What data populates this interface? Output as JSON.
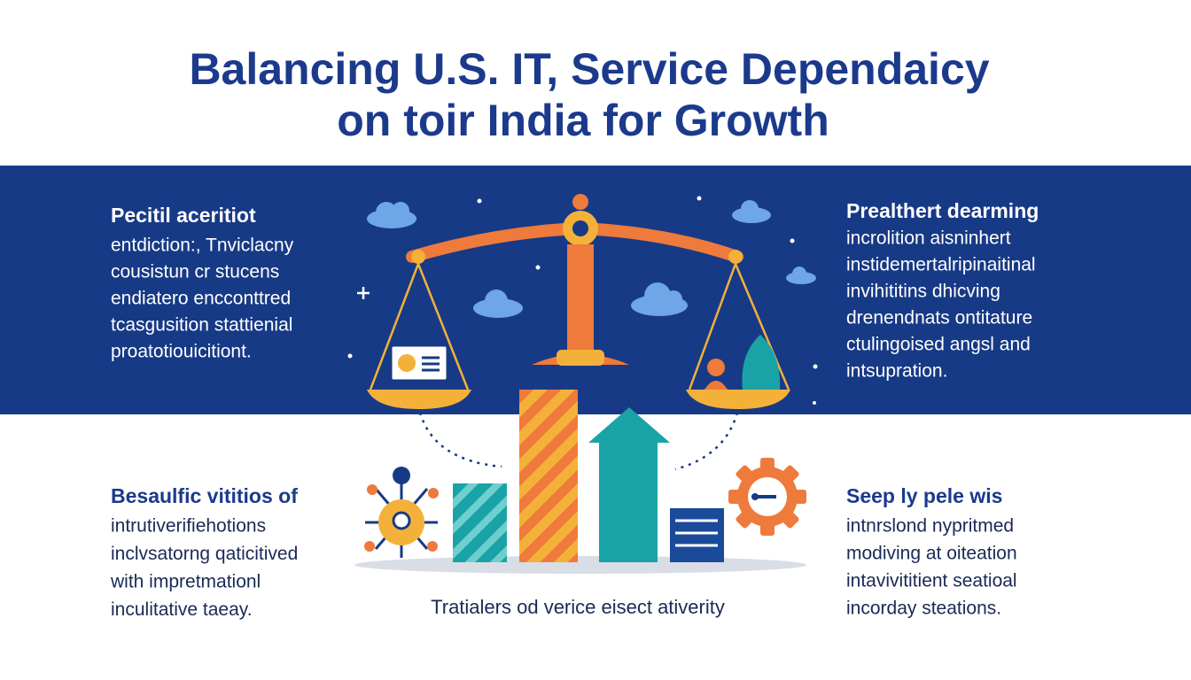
{
  "title": [
    "Balancing U.S. IT, Service Dependaicy",
    "on toir India for Growth"
  ],
  "panels": [
    {
      "heading": "Pecitil aceritiot",
      "lines": [
        "entdiction:, Tnviclacny",
        "cousistun cr stucens",
        "endiatero encconttred",
        "tcasgusition stattienial",
        "proatotiouicitiont."
      ]
    },
    {
      "heading": "Prealthert dearming",
      "lines": [
        "incrolition aisninhert",
        "instidemertalripinaitinal",
        "invihititins dhicving",
        "drenendnats ontitature",
        "ctulingoised angsl and",
        "intsupration."
      ]
    },
    {
      "heading": "Besaulfic vititios of",
      "lines": [
        "intrutiverifiehotions",
        "inclvsatorng qaticitived",
        "with impretmationl",
        "inculitative taeay."
      ]
    },
    {
      "heading": "Seep ly pele wis",
      "lines": [
        "intnrslond nypritmed",
        "modiving at oiteation",
        "intavivititient seatioal",
        "incorday steations."
      ]
    }
  ],
  "caption": "Tratialers od verice eisect ativerity"
}
